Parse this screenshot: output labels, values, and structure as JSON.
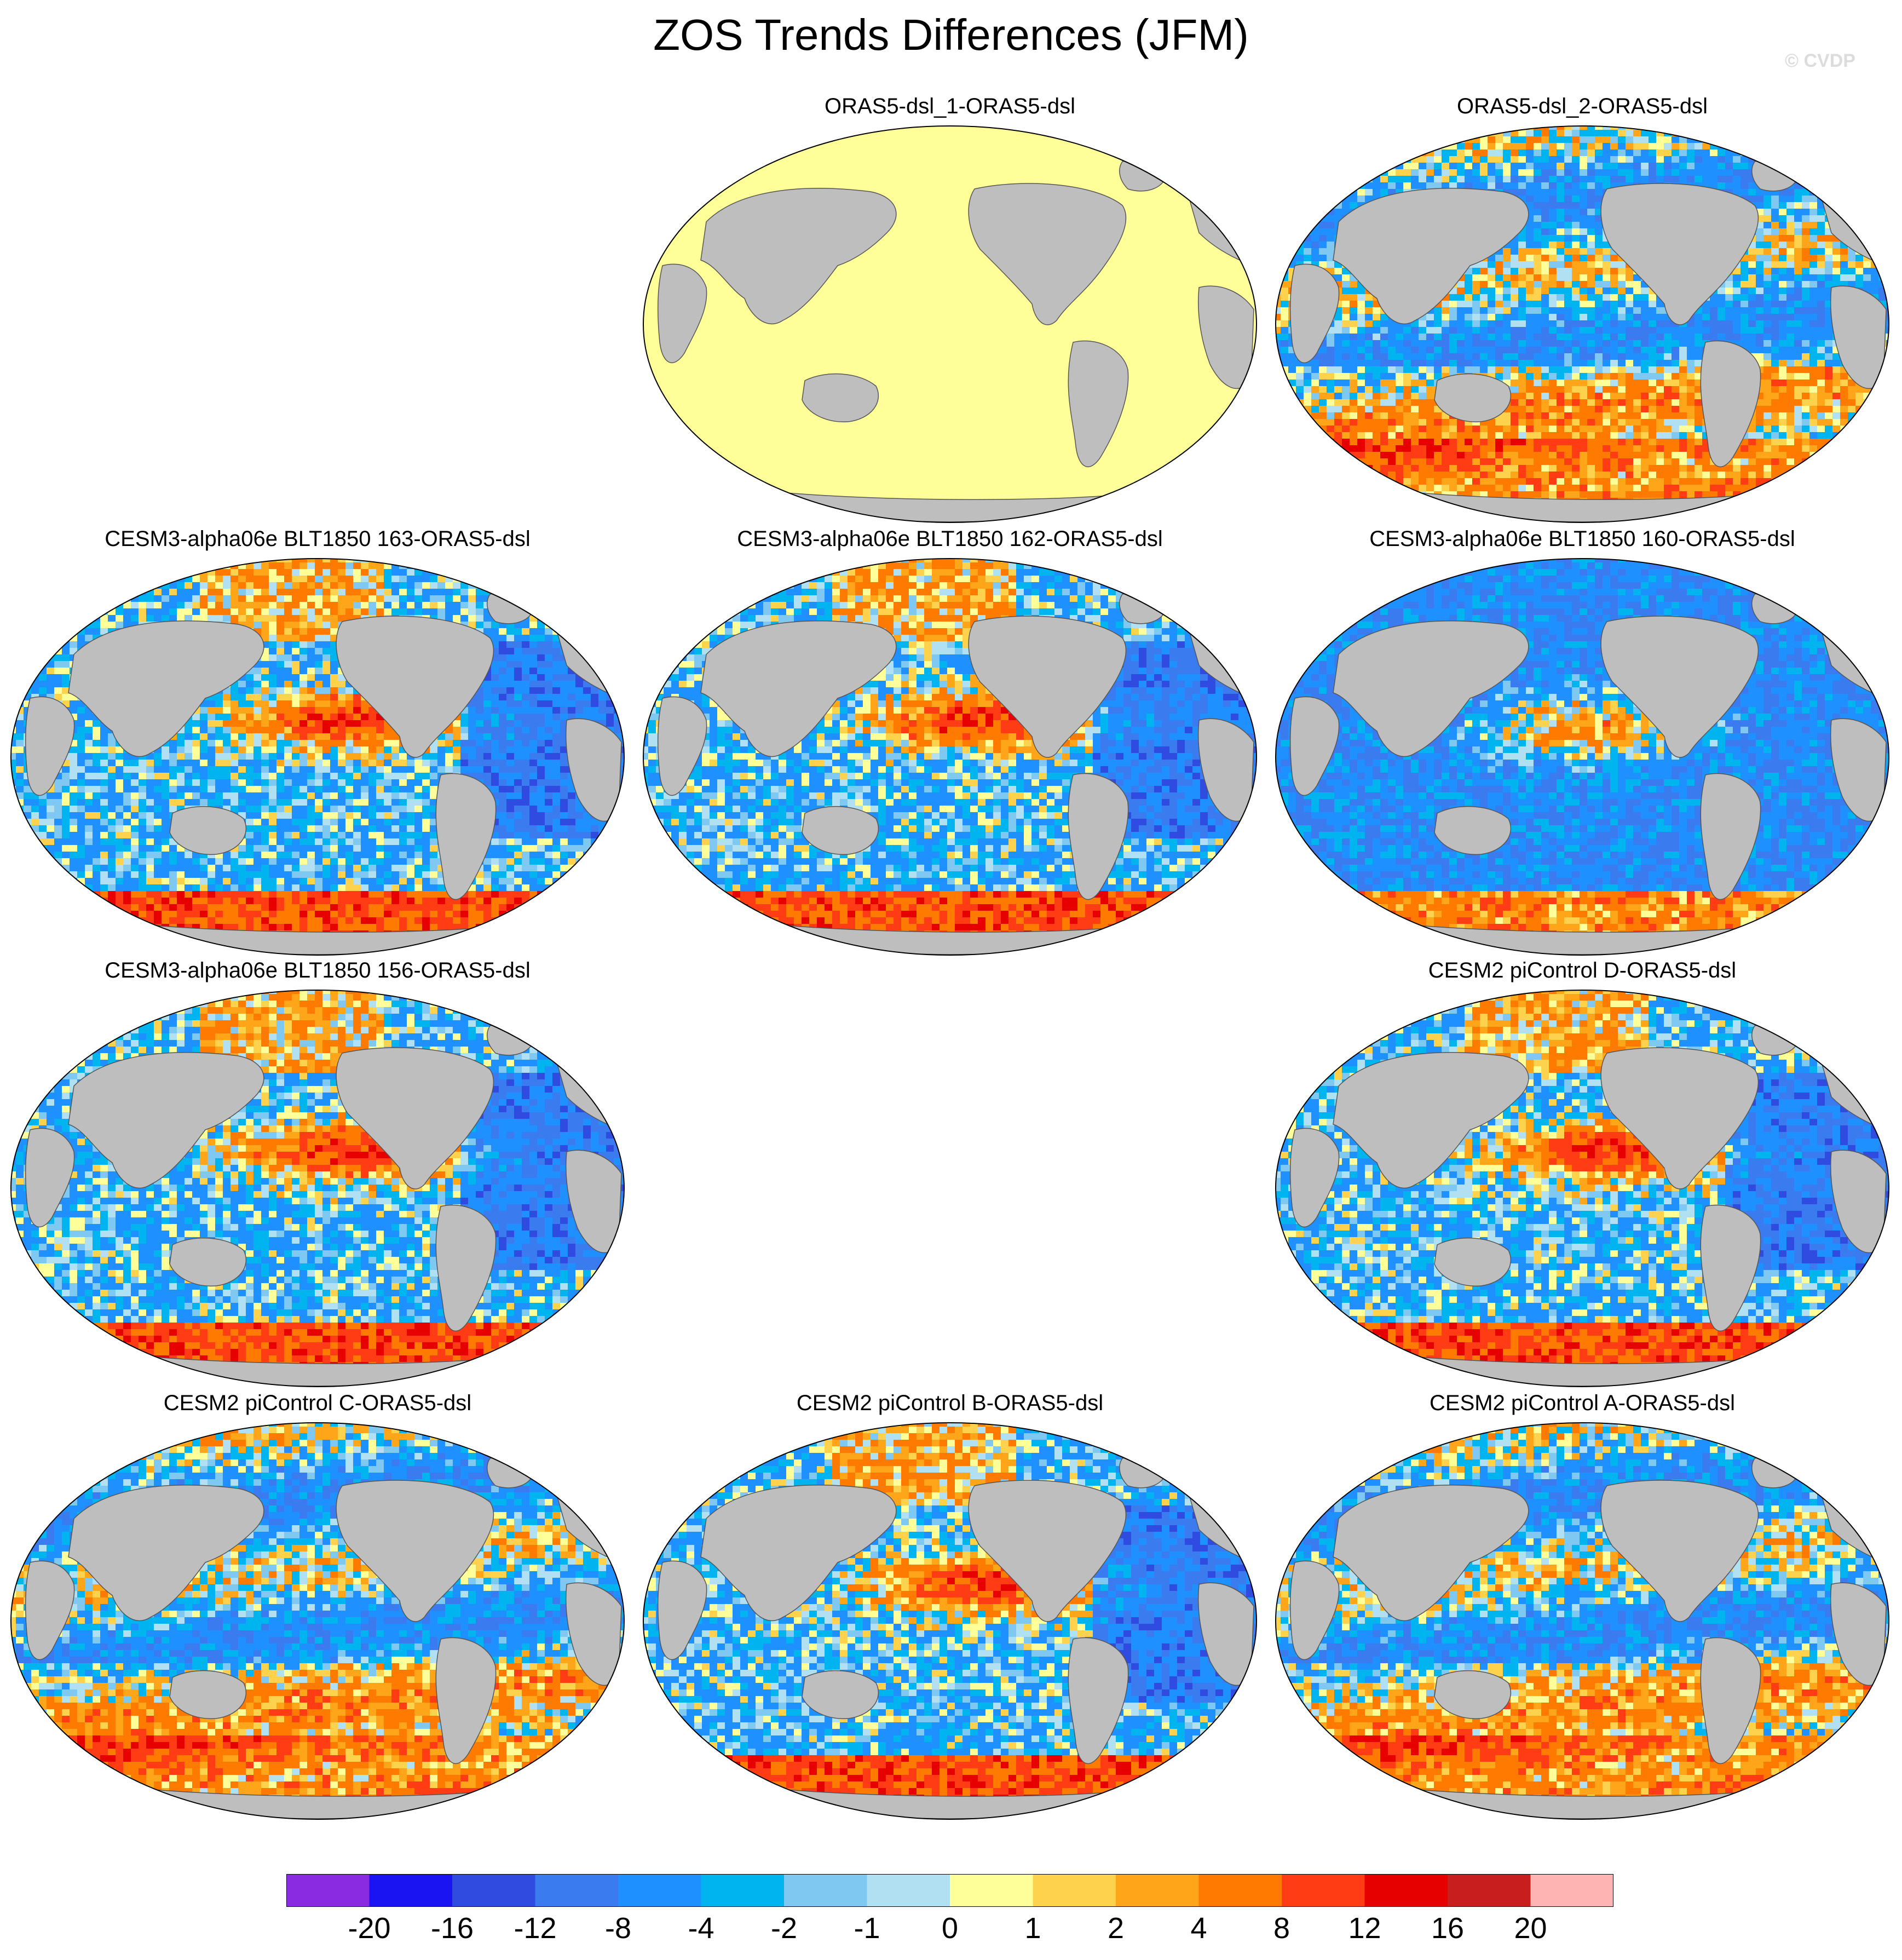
{
  "title": "ZOS Trends Differences (JFM)",
  "watermark": "© CVDP",
  "panels": [
    {
      "title": "ORAS5-dsl_1-ORAS5-dsl",
      "pattern": "zero"
    },
    {
      "title": "ORAS5-dsl_2-ORAS5-dsl",
      "pattern": "mixed-positive-south"
    },
    {
      "title": "CESM3-alpha06e BLT1850 163-ORAS5-dsl",
      "pattern": "positive-equatorial-pacific"
    },
    {
      "title": "CESM3-alpha06e BLT1850 162-ORAS5-dsl",
      "pattern": "positive-equatorial-pacific"
    },
    {
      "title": "CESM3-alpha06e BLT1850 160-ORAS5-dsl",
      "pattern": "negative-atlantic"
    },
    {
      "title": "CESM3-alpha06e BLT1850 156-ORAS5-dsl",
      "pattern": "positive-equatorial-pacific"
    },
    {
      "title": "CESM2 piControl D-ORAS5-dsl",
      "pattern": "positive-equatorial-pacific"
    },
    {
      "title": "CESM2 piControl C-ORAS5-dsl",
      "pattern": "mixed-positive-south"
    },
    {
      "title": "CESM2 piControl B-ORAS5-dsl",
      "pattern": "positive-equatorial-pacific"
    },
    {
      "title": "CESM2 piControl A-ORAS5-dsl",
      "pattern": "mixed-positive-south"
    }
  ],
  "chart_data": {
    "type": "heatmap",
    "projection": "Winkel tripel / Robinson-like, Pacific-centered",
    "colorbar": {
      "labels": [
        "-20",
        "-16",
        "-12",
        "-8",
        "-4",
        "-2",
        "-1",
        "0",
        "1",
        "2",
        "4",
        "8",
        "12",
        "16",
        "20"
      ],
      "levels": [
        -20,
        -16,
        -12,
        -8,
        -4,
        -2,
        -1,
        0,
        1,
        2,
        4,
        8,
        12,
        16,
        20
      ],
      "colors": [
        "#8a2be2",
        "#1a14f2",
        "#2f4be0",
        "#3a7bf0",
        "#1e90ff",
        "#00b4f0",
        "#7ec8f2",
        "#b0e0f2",
        "#ffff99",
        "#ffd24d",
        "#ffa51a",
        "#ff7a00",
        "#ff3c14",
        "#e60000",
        "#c81e1e",
        "#ffb4b4"
      ]
    },
    "land_color": "#bebebe",
    "zero_panel_color": "#ffff99"
  }
}
